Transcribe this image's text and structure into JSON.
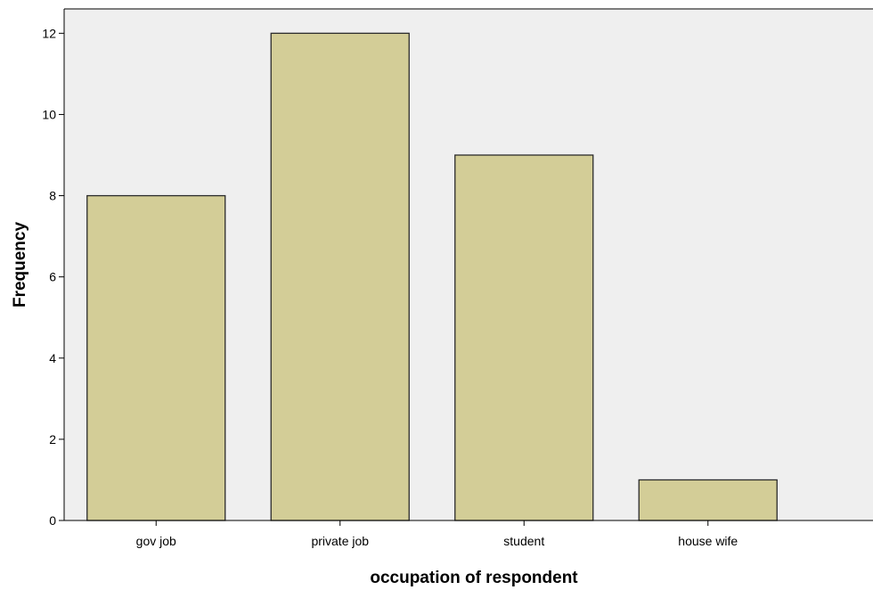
{
  "chart_data": {
    "type": "bar",
    "title": "",
    "xlabel": "occupation of respondent",
    "ylabel": "Frequency",
    "categories": [
      "gov job",
      "private job",
      "student",
      "house wife"
    ],
    "values": [
      8,
      12,
      9,
      1
    ],
    "ylim": [
      0,
      12.6
    ],
    "yticks": [
      0,
      2,
      4,
      6,
      8,
      10,
      12
    ],
    "grid": false,
    "legend": "none",
    "colors": {
      "bar_fill": "#d3cd97",
      "bar_stroke": "#2b2b2b",
      "plot_background": "#efefef",
      "axis": "#000000"
    }
  }
}
